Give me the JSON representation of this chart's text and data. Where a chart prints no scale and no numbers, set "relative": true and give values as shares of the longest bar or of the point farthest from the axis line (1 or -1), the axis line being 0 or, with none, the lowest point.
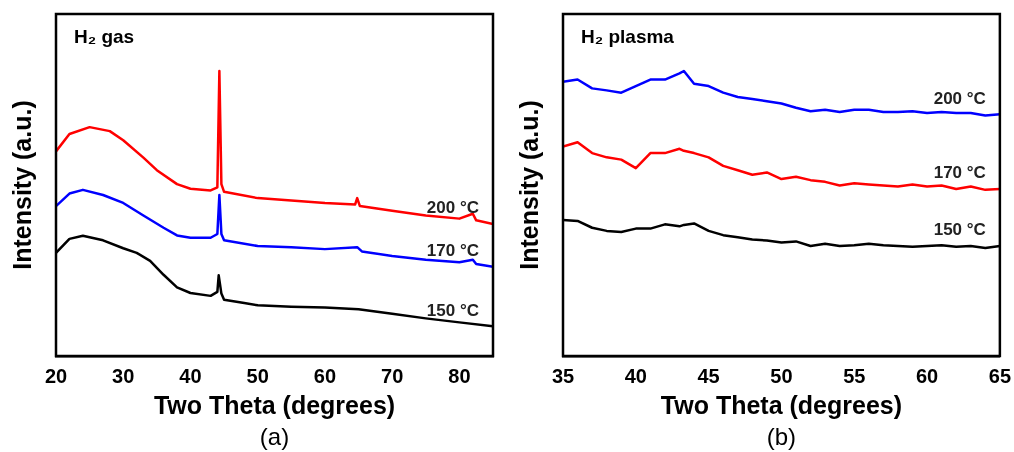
{
  "chart_data": [
    {
      "type": "line",
      "title": "H₂ gas",
      "xlabel": "Two Theta (degrees)",
      "ylabel": "Intensity (a.u.)",
      "annotations": [
        "(a)"
      ],
      "relative": true,
      "xlim": [
        20,
        85
      ],
      "xticks": [
        20,
        30,
        40,
        50,
        60,
        70,
        80
      ],
      "x": [
        20,
        22,
        25,
        28,
        30,
        33,
        35,
        38,
        40,
        43,
        44,
        44.3,
        44.6,
        45,
        50,
        55,
        60,
        64.5,
        64.8,
        65.2,
        70,
        75,
        80,
        82,
        82.5,
        85
      ],
      "series": [
        {
          "name": "200 °C",
          "color": "#ff0000",
          "values": [
            0.718,
            0.779,
            0.803,
            0.789,
            0.757,
            0.696,
            0.652,
            0.603,
            0.587,
            0.581,
            0.592,
            1.0,
            0.603,
            0.576,
            0.554,
            0.546,
            0.537,
            0.532,
            0.554,
            0.526,
            0.51,
            0.493,
            0.482,
            0.499,
            0.476,
            0.463
          ]
        },
        {
          "name": "170 °C",
          "color": "#0000ff",
          "x": [
            20,
            22,
            24,
            27,
            30,
            33,
            36,
            38,
            40,
            43,
            44,
            44.3,
            44.6,
            45,
            50,
            55,
            60,
            64.8,
            65.5,
            70,
            75,
            80,
            82,
            82.5,
            85
          ],
          "values": [
            0.526,
            0.57,
            0.583,
            0.565,
            0.537,
            0.493,
            0.45,
            0.423,
            0.415,
            0.415,
            0.428,
            0.565,
            0.428,
            0.406,
            0.386,
            0.382,
            0.375,
            0.382,
            0.367,
            0.351,
            0.338,
            0.329,
            0.338,
            0.323,
            0.313
          ]
        },
        {
          "name": "150 °C",
          "color": "#000000",
          "x": [
            20,
            22,
            24,
            27,
            30,
            32,
            34,
            36,
            38,
            40,
            43,
            44,
            44.2,
            44.6,
            45,
            48,
            50,
            55,
            60,
            65,
            70,
            75,
            80,
            85
          ],
          "values": [
            0.362,
            0.411,
            0.422,
            0.406,
            0.378,
            0.362,
            0.334,
            0.285,
            0.241,
            0.221,
            0.211,
            0.225,
            0.283,
            0.219,
            0.197,
            0.186,
            0.178,
            0.173,
            0.17,
            0.164,
            0.148,
            0.132,
            0.118,
            0.104
          ]
        }
      ]
    },
    {
      "type": "line",
      "title": "H₂ plasma",
      "xlabel": "Two Theta (degrees)",
      "ylabel": "Intensity (a.u.)",
      "annotations": [
        "(b)"
      ],
      "relative": true,
      "xlim": [
        35,
        65
      ],
      "xticks": [
        35,
        40,
        45,
        50,
        55,
        60,
        65
      ],
      "x": [
        35,
        36,
        37,
        38,
        39,
        40,
        41,
        42,
        43,
        43.3,
        44,
        45,
        46,
        47,
        48,
        49,
        50,
        51,
        52,
        53,
        54,
        55,
        56,
        57,
        58,
        59,
        60,
        61,
        62,
        63,
        64,
        65
      ],
      "series": [
        {
          "name": "200 °C",
          "color": "#0000ff",
          "values": [
            0.962,
            0.97,
            0.939,
            0.932,
            0.924,
            0.947,
            0.97,
            0.97,
            0.992,
            1.0,
            0.955,
            0.947,
            0.924,
            0.909,
            0.902,
            0.894,
            0.886,
            0.871,
            0.859,
            0.864,
            0.856,
            0.864,
            0.864,
            0.856,
            0.856,
            0.859,
            0.853,
            0.856,
            0.853,
            0.853,
            0.844,
            0.848
          ]
        },
        {
          "name": "170 °C",
          "color": "#ff0000",
          "values": [
            0.735,
            0.75,
            0.712,
            0.697,
            0.689,
            0.659,
            0.712,
            0.712,
            0.727,
            0.72,
            0.712,
            0.697,
            0.667,
            0.652,
            0.636,
            0.644,
            0.621,
            0.629,
            0.617,
            0.611,
            0.598,
            0.606,
            0.602,
            0.598,
            0.595,
            0.602,
            0.595,
            0.598,
            0.586,
            0.595,
            0.583,
            0.586
          ]
        },
        {
          "name": "150 °C",
          "color": "#000000",
          "values": [
            0.477,
            0.474,
            0.45,
            0.439,
            0.435,
            0.447,
            0.447,
            0.462,
            0.455,
            0.46,
            0.465,
            0.439,
            0.424,
            0.417,
            0.409,
            0.405,
            0.398,
            0.402,
            0.386,
            0.394,
            0.386,
            0.389,
            0.394,
            0.389,
            0.386,
            0.383,
            0.386,
            0.389,
            0.383,
            0.386,
            0.379,
            0.386
          ]
        }
      ]
    }
  ]
}
